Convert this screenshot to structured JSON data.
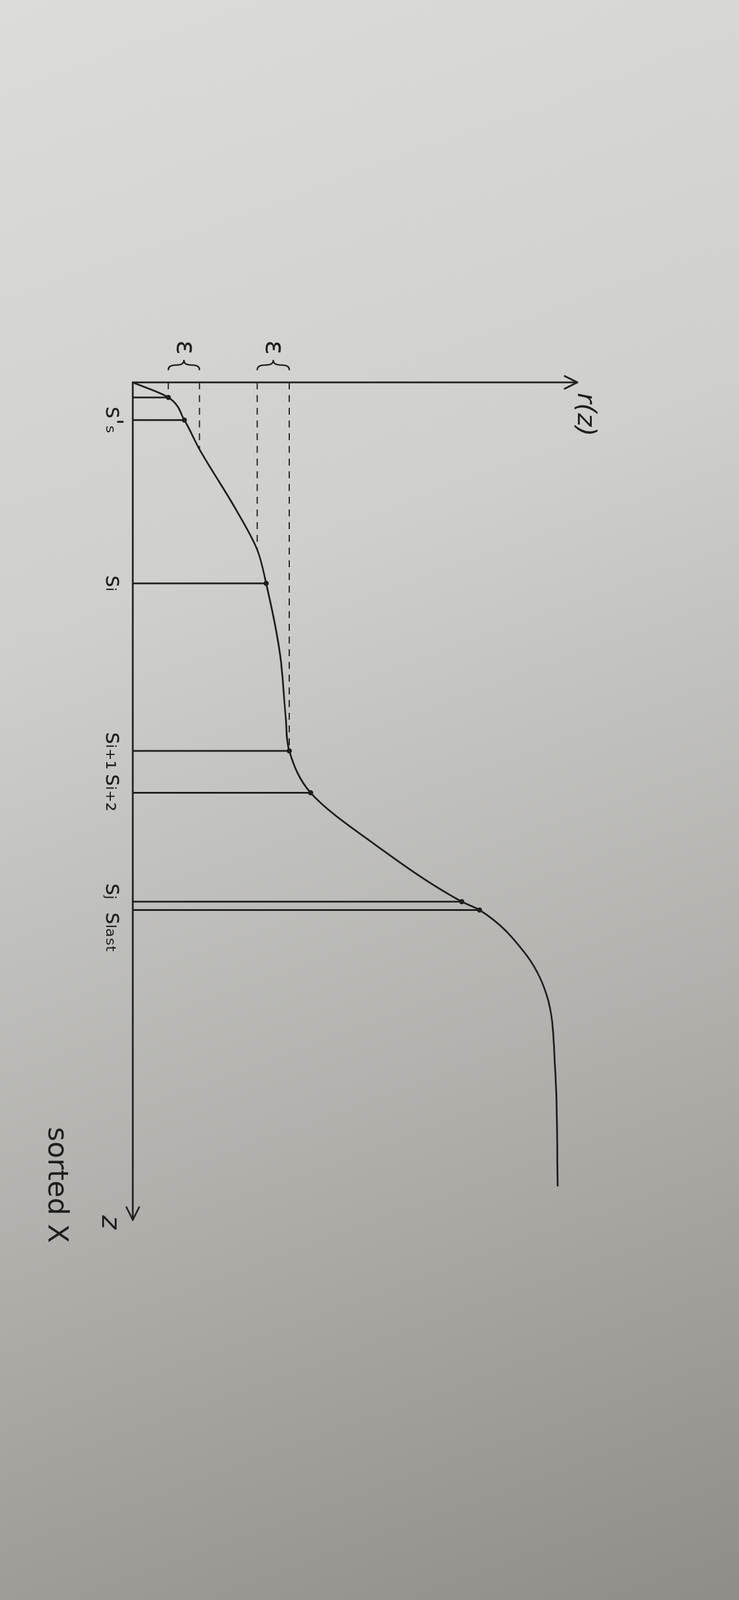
{
  "chart_data": {
    "type": "line",
    "x_label": "z",
    "y_label": "r(z)",
    "caption": "sorted X",
    "xlim": [
      0,
      10
    ],
    "ylim": [
      0,
      5
    ],
    "tick_labels": false,
    "grid": false,
    "color": "#1e1e1e",
    "curve": {
      "z": [
        0,
        0.18,
        0.45,
        0.8,
        1.5,
        2.0,
        2.4,
        3.2,
        4.0,
        4.4,
        4.9,
        5.5,
        6.2,
        6.3,
        6.8,
        7.3,
        8.2,
        9.6
      ],
      "r": [
        0,
        0.4,
        0.58,
        0.75,
        1.15,
        1.4,
        1.5,
        1.65,
        1.72,
        1.76,
        2.0,
        2.7,
        3.7,
        3.9,
        4.4,
        4.65,
        4.75,
        4.78
      ]
    },
    "markers": [
      {
        "label": null,
        "z": 0.18,
        "r": 0.4
      },
      {
        "label": "s'ₛ",
        "z": 0.45,
        "r": 0.58
      },
      {
        "label": "sᵢ",
        "z": 2.4,
        "r": 1.5
      },
      {
        "label": "sᵢ₊₁",
        "z": 4.4,
        "r": 1.76
      },
      {
        "label": "sᵢ₊₂",
        "z": 4.9,
        "r": 2.0
      },
      {
        "label": "sⱼ",
        "z": 6.2,
        "r": 3.7
      },
      {
        "label": "sₗₐₛₜ",
        "z": 6.3,
        "r": 3.9
      }
    ],
    "guides": [
      {
        "z": 0.18,
        "r": 0.4
      },
      {
        "z": 0.8,
        "r": 0.75
      },
      {
        "z": 2.0,
        "r": 1.4
      },
      {
        "z": 4.4,
        "r": 1.76
      }
    ],
    "epsilon": [
      {
        "label": "ε",
        "r": [
          0.4,
          0.75
        ]
      },
      {
        "label": "ε",
        "r": [
          1.4,
          1.76
        ]
      }
    ]
  }
}
